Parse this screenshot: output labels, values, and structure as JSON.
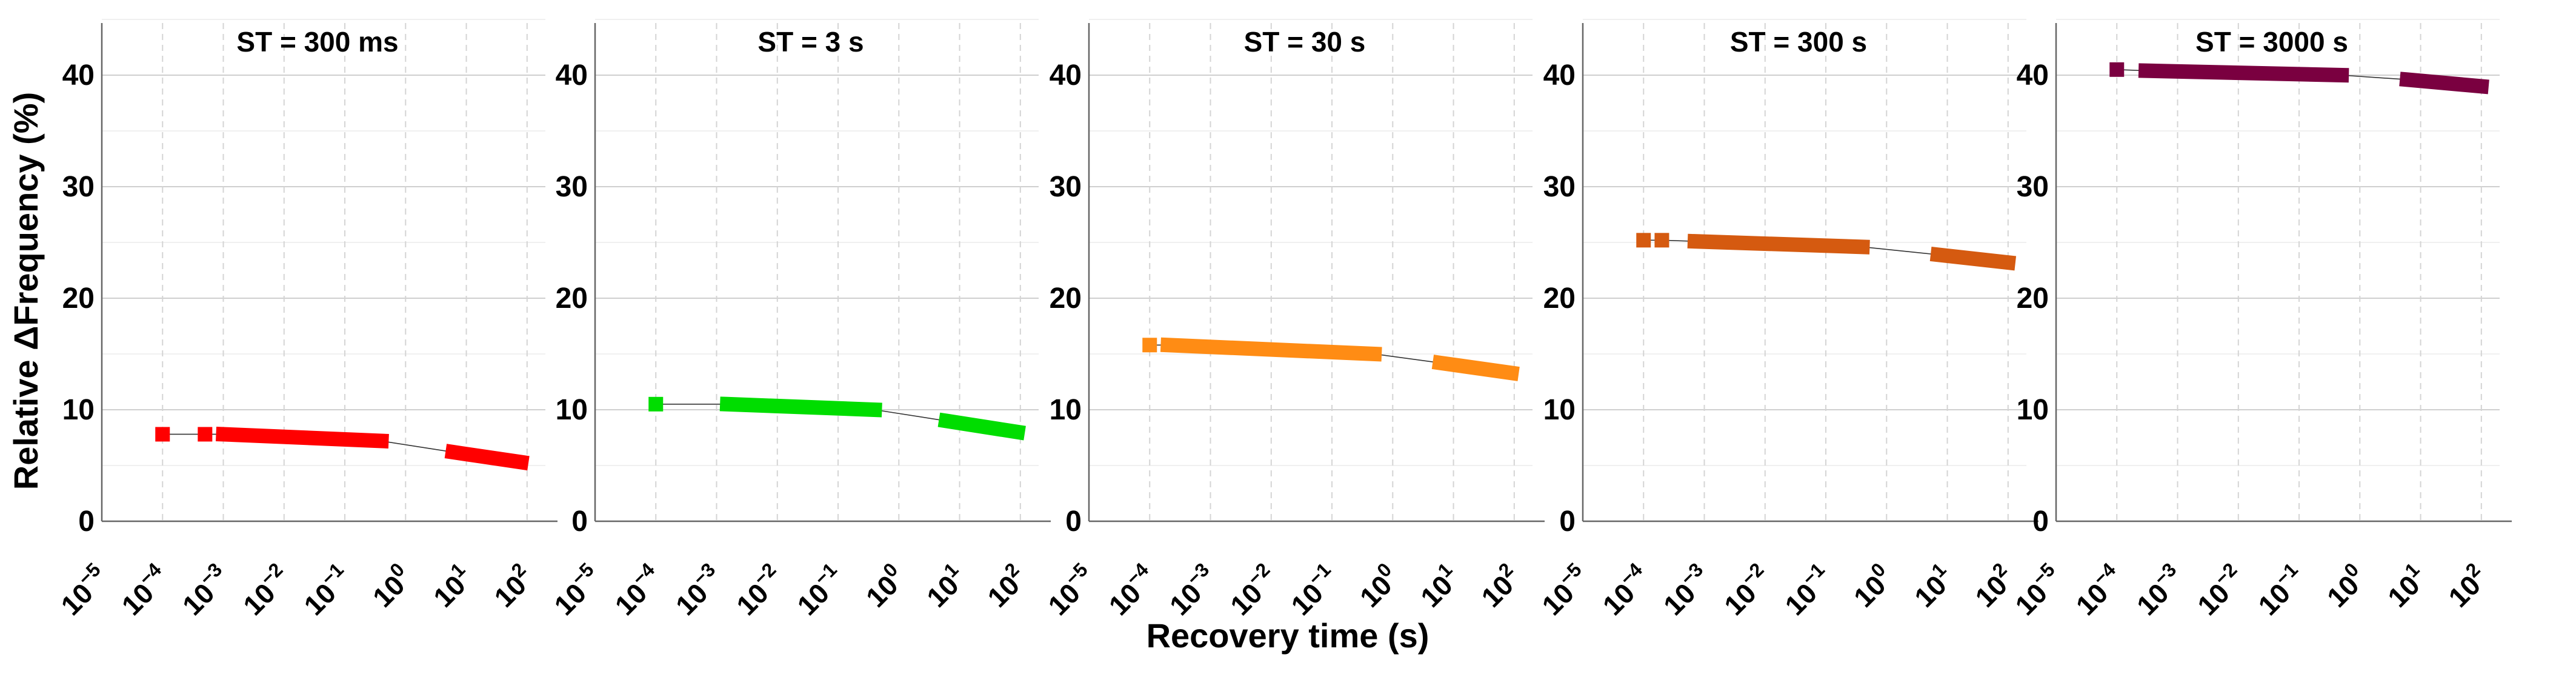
{
  "chart_data": {
    "type": "scatter",
    "ylabel": "Relative ΔFrequency (%)",
    "xlabel": "Recovery time (s)",
    "xscale": "log",
    "xlim": [
      1e-05,
      200
    ],
    "ylim": [
      0,
      45
    ],
    "ytick_labels": [
      "0",
      "10",
      "20",
      "30",
      "40"
    ],
    "ytick_values": [
      0,
      10,
      20,
      30,
      40
    ],
    "xtick_base": "10",
    "xtick_exponents": [
      "−5",
      "−4",
      "−3",
      "−2",
      "−1",
      "0",
      "1",
      "2"
    ],
    "xtick_exponent_values": [
      -5,
      -4,
      -3,
      -2,
      -1,
      0,
      1,
      2
    ],
    "grid": true,
    "panels": [
      {
        "title": "ST = 300 ms",
        "color": "#ff0000",
        "segments": [
          {
            "x_start": 0.0001,
            "x_end": 0.0001,
            "y_start": 7.8,
            "y_end": 7.8
          },
          {
            "x_start": 0.0005,
            "x_end": 0.0005,
            "y_start": 7.8,
            "y_end": 7.8
          },
          {
            "x_start": 0.001,
            "x_end": 0.4,
            "y_start": 7.8,
            "y_end": 7.2
          },
          {
            "x_start": 6,
            "x_end": 80,
            "y_start": 6.2,
            "y_end": 5.3
          }
        ]
      },
      {
        "title": "ST = 3 s",
        "color": "#00dd00",
        "segments": [
          {
            "x_start": 0.0001,
            "x_end": 0.0001,
            "y_start": 10.5,
            "y_end": 10.5
          },
          {
            "x_start": 0.0015,
            "x_end": 0.4,
            "y_start": 10.5,
            "y_end": 10.0
          },
          {
            "x_start": 6,
            "x_end": 90,
            "y_start": 9.0,
            "y_end": 8.0
          }
        ]
      },
      {
        "title": "ST = 30 s",
        "color": "#ff8c14",
        "segments": [
          {
            "x_start": 0.0001,
            "x_end": 0.0001,
            "y_start": 15.8,
            "y_end": 15.8
          },
          {
            "x_start": 0.0002,
            "x_end": 0.5,
            "y_start": 15.8,
            "y_end": 15.0
          },
          {
            "x_start": 6,
            "x_end": 90,
            "y_start": 14.2,
            "y_end": 13.3
          }
        ]
      },
      {
        "title": "ST = 300 s",
        "color": "#d55a10",
        "segments": [
          {
            "x_start": 0.0001,
            "x_end": 0.0001,
            "y_start": 25.2,
            "y_end": 25.2
          },
          {
            "x_start": 0.0002,
            "x_end": 0.0002,
            "y_start": 25.2,
            "y_end": 25.2
          },
          {
            "x_start": 0.0007,
            "x_end": 0.4,
            "y_start": 25.1,
            "y_end": 24.6
          },
          {
            "x_start": 7,
            "x_end": 100,
            "y_start": 23.9,
            "y_end": 23.2
          }
        ]
      },
      {
        "title": "ST = 3000 s",
        "color": "#7a0040",
        "segments": [
          {
            "x_start": 0.0001,
            "x_end": 0.0001,
            "y_start": 40.5,
            "y_end": 40.5
          },
          {
            "x_start": 0.0003,
            "x_end": 0.5,
            "y_start": 40.4,
            "y_end": 40.0
          },
          {
            "x_start": 6,
            "x_end": 100,
            "y_start": 39.6,
            "y_end": 39.0
          }
        ]
      }
    ]
  }
}
